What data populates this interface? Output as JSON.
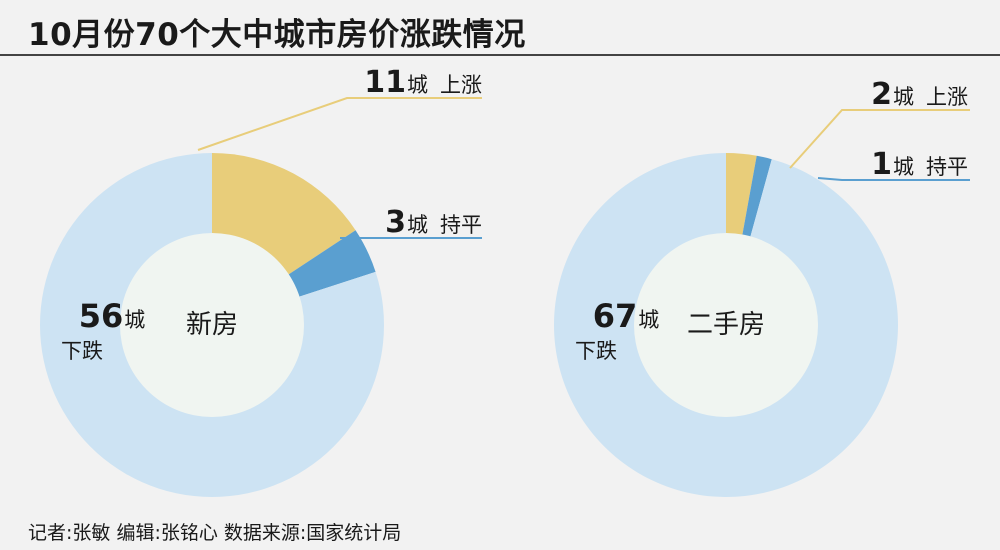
{
  "title": "10月份70个大中城市房价涨跌情况",
  "footer": "记者:张敏  编辑:张铭心  数据来源:国家统计局",
  "colors": {
    "up": "#e8cd7a",
    "flat": "#5a9fd0",
    "down": "#cde3f3",
    "hole": "#f0f5f1"
  },
  "chart_data": [
    {
      "type": "pie",
      "title": "新房",
      "categories": [
        "上涨",
        "持平",
        "下跌"
      ],
      "values": [
        11,
        3,
        56
      ],
      "labels": {
        "up": {
          "num": "11",
          "unit": "城",
          "text": "上涨"
        },
        "flat": {
          "num": "3",
          "unit": "城",
          "text": "持平"
        },
        "down": {
          "num": "56",
          "unit": "城",
          "text": "下跌"
        }
      }
    },
    {
      "type": "pie",
      "title": "二手房",
      "categories": [
        "上涨",
        "持平",
        "下跌"
      ],
      "values": [
        2,
        1,
        67
      ],
      "labels": {
        "up": {
          "num": "2",
          "unit": "城",
          "text": "上涨"
        },
        "flat": {
          "num": "1",
          "unit": "城",
          "text": "持平"
        },
        "down": {
          "num": "67",
          "unit": "城",
          "text": "下跌"
        }
      }
    }
  ]
}
